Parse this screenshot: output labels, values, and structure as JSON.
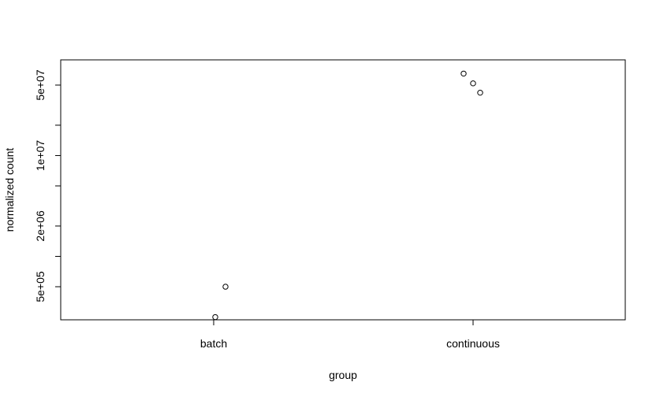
{
  "chart_data": {
    "type": "scatter",
    "xlabel": "group",
    "ylabel": "normalized count",
    "y_scale": "log",
    "categories": [
      "batch",
      "continuous"
    ],
    "y_ticks": [
      {
        "value": 500000,
        "label": "5e+05"
      },
      {
        "value": 2000000,
        "label": "2e+06"
      },
      {
        "value": 10000000,
        "label": "1e+07"
      },
      {
        "value": 50000000,
        "label": "5e+07"
      }
    ],
    "y_minor_ticks": [
      1000000,
      5000000,
      20000000
    ],
    "points": [
      {
        "group": "batch",
        "y": 500000
      },
      {
        "group": "batch",
        "y": 250000
      },
      {
        "group": "continuous",
        "y": 65000000
      },
      {
        "group": "continuous",
        "y": 52000000
      },
      {
        "group": "continuous",
        "y": 42000000
      }
    ]
  }
}
